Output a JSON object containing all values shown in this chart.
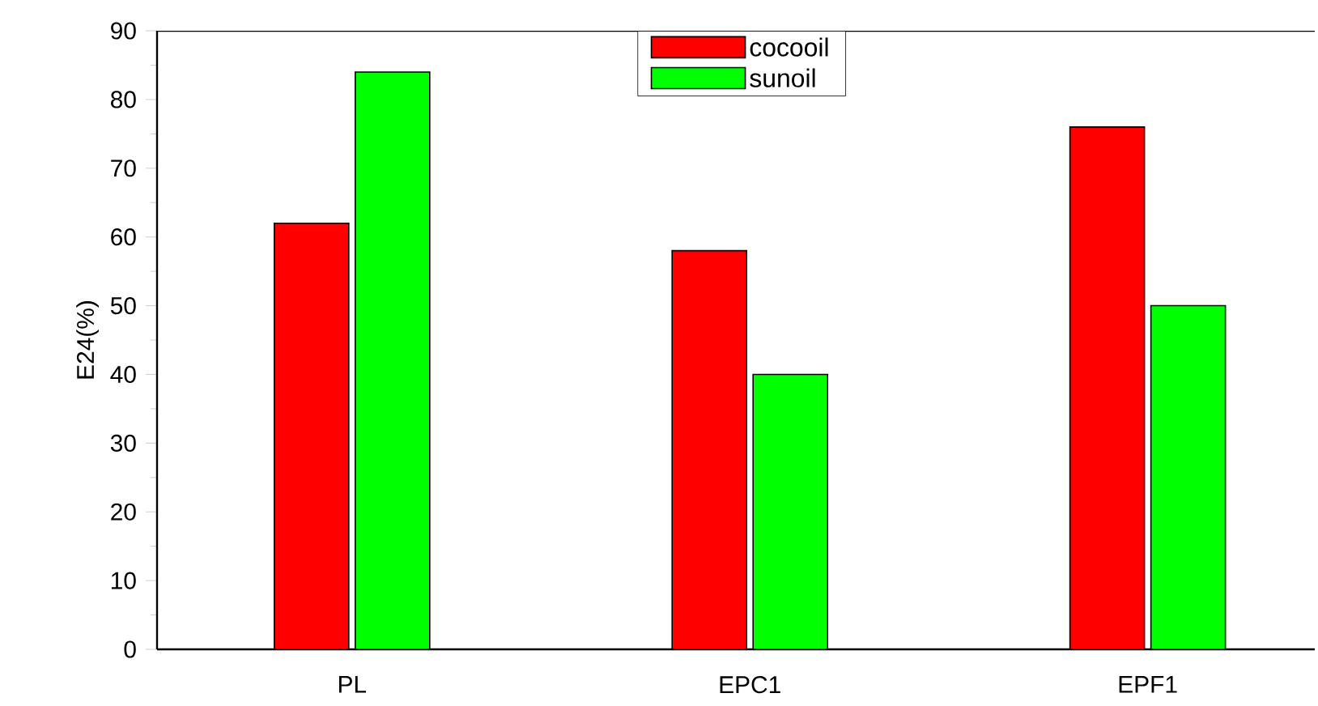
{
  "chart_data": {
    "type": "bar",
    "ylabel": "E24(%)",
    "categories": [
      "PL",
      "EPC1",
      "EPF1"
    ],
    "series": [
      {
        "name": "cocooil",
        "color": "#ff0000",
        "values": [
          62,
          58,
          76
        ]
      },
      {
        "name": "sunoil",
        "color": "#00ff00",
        "values": [
          84,
          40,
          50
        ]
      }
    ],
    "ylim": [
      0,
      90
    ],
    "yticks": [
      0,
      10,
      20,
      30,
      40,
      50,
      60,
      70,
      80,
      90
    ],
    "legend": "top",
    "grid": false
  }
}
